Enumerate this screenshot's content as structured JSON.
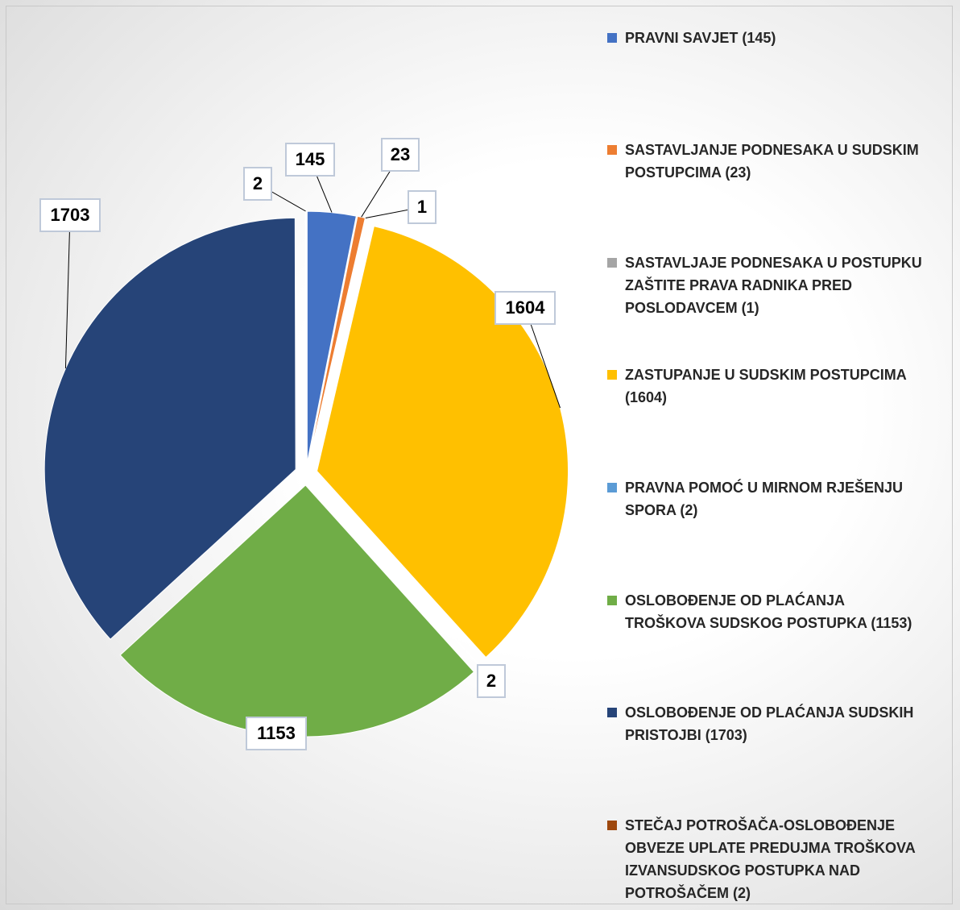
{
  "chart_data": {
    "type": "pie",
    "categories": [
      "PRAVNI SAVJET (145)",
      "SASTAVLJANJE PODNESAKA U SUDSKIM POSTUPCIMA (23)",
      "SASTAVLJAJE PODNESAKA U POSTUPKU ZAŠTITE PRAVA RADNIKA PRED POSLODAVCEM (1)",
      "ZASTUPANJE U SUDSKIM POSTUPCIMA (1604)",
      "PRAVNA POMOĆ U MIRNOM RJEŠENJU SPORA (2)",
      "OSLOBOĐENJE OD PLAĆANJA TROŠKOVA SUDSKOG POSTUPKA (1153)",
      "OSLOBOĐENJE OD PLAĆANJA SUDSKIH PRISTOJBI (1703)",
      "STEČAJ POTROŠAČA-OSLOBOĐENJE OBVEZE UPLATE PREDUJMA TROŠKOVA IZVANSUDSKOG POSTUPKA NAD POTROŠAČEM (2)"
    ],
    "values": [
      145,
      23,
      1,
      1604,
      2,
      1153,
      1703,
      2
    ],
    "colors": [
      "#4472c4",
      "#ed7d31",
      "#a5a5a5",
      "#ffc000",
      "#5b9bd5",
      "#70ad47",
      "#264478",
      "#9e480e"
    ],
    "legend": "right"
  }
}
